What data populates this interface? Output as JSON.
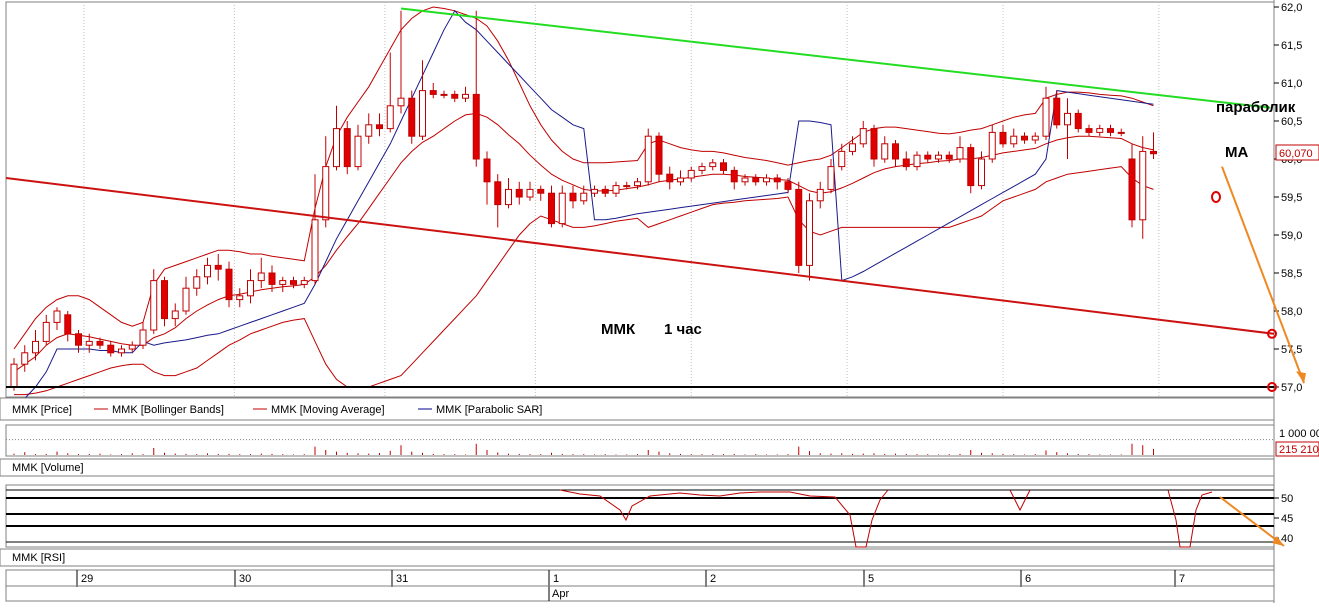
{
  "chart_data": {
    "type": "candlestick",
    "instrument": "MMK",
    "timeframe_label": "1 час",
    "title_main": "ММК",
    "price_axis": {
      "ylim": [
        57.0,
        62.0
      ],
      "ticks": [
        "62,0",
        "61,5",
        "61,0",
        "60,5",
        "60,0",
        "59,5",
        "59,0",
        "58,5",
        "58,0",
        "57,5",
        "57,0"
      ],
      "last_price_label": "60,070",
      "last_price": 60.07
    },
    "annotations": {
      "parabolic_label": "параболик",
      "ma_label": "МА"
    },
    "legend": [
      {
        "name": "MMK [Price]",
        "color": "#000000"
      },
      {
        "name": "MMK [Bollinger Bands]",
        "color": "#c00000"
      },
      {
        "name": "MMK [Moving Average]",
        "color": "#c00000"
      },
      {
        "name": "MMK [Parabolic SAR]",
        "color": "#00008b"
      }
    ],
    "volume_panel": {
      "label": "MMK [Volume]",
      "tick_top": "1 000 00",
      "last_value": "215 210"
    },
    "rsi_panel": {
      "label": "MMK [RSI]",
      "ticks": [
        "50",
        "45",
        "40"
      ]
    },
    "x_axis": {
      "day_labels": [
        "29",
        "30",
        "31",
        "1",
        "2",
        "5",
        "6",
        "7"
      ],
      "month_label": "Apr"
    },
    "candles": [
      [
        57.0,
        57.3,
        56.95,
        57.38
      ],
      [
        57.3,
        57.45,
        57.2,
        57.55
      ],
      [
        57.45,
        57.6,
        57.35,
        57.75
      ],
      [
        57.6,
        57.85,
        57.55,
        57.95
      ],
      [
        57.85,
        58.0,
        57.75,
        58.05
      ],
      [
        57.95,
        57.7,
        57.6,
        58.0
      ],
      [
        57.7,
        57.55,
        57.45,
        57.75
      ],
      [
        57.55,
        57.6,
        57.45,
        57.7
      ],
      [
        57.6,
        57.55,
        57.5,
        57.65
      ],
      [
        57.55,
        57.45,
        57.4,
        57.6
      ],
      [
        57.45,
        57.5,
        57.4,
        57.55
      ],
      [
        57.5,
        57.55,
        57.45,
        57.6
      ],
      [
        57.55,
        57.75,
        57.5,
        57.85
      ],
      [
        57.75,
        58.4,
        57.7,
        58.55
      ],
      [
        58.4,
        57.9,
        57.8,
        58.45
      ],
      [
        57.9,
        58.0,
        57.8,
        58.1
      ],
      [
        58.0,
        58.3,
        57.95,
        58.45
      ],
      [
        58.3,
        58.45,
        58.2,
        58.55
      ],
      [
        58.45,
        58.6,
        58.35,
        58.7
      ],
      [
        58.6,
        58.55,
        58.4,
        58.75
      ],
      [
        58.55,
        58.15,
        58.05,
        58.65
      ],
      [
        58.15,
        58.2,
        58.05,
        58.3
      ],
      [
        58.2,
        58.4,
        58.1,
        58.55
      ],
      [
        58.4,
        58.5,
        58.3,
        58.7
      ],
      [
        58.5,
        58.35,
        58.25,
        58.6
      ],
      [
        58.35,
        58.4,
        58.25,
        58.45
      ],
      [
        58.4,
        58.35,
        58.3,
        58.45
      ],
      [
        58.35,
        58.4,
        58.3,
        58.45
      ],
      [
        58.4,
        59.2,
        58.35,
        59.8
      ],
      [
        59.2,
        59.9,
        59.1,
        60.3
      ],
      [
        59.9,
        60.4,
        59.85,
        60.7
      ],
      [
        60.4,
        59.9,
        59.8,
        60.5
      ],
      [
        59.9,
        60.3,
        59.85,
        60.45
      ],
      [
        60.3,
        60.45,
        60.2,
        60.6
      ],
      [
        60.45,
        60.4,
        60.3,
        60.6
      ],
      [
        60.4,
        60.7,
        60.35,
        61.4
      ],
      [
        60.7,
        60.8,
        60.6,
        61.95
      ],
      [
        60.8,
        60.3,
        60.2,
        60.9
      ],
      [
        60.3,
        60.9,
        60.25,
        61.3
      ],
      [
        60.9,
        60.85,
        60.8,
        61.0
      ],
      [
        60.85,
        60.85,
        60.8,
        60.9
      ],
      [
        60.85,
        60.8,
        60.75,
        60.9
      ],
      [
        60.8,
        60.85,
        60.75,
        60.95
      ],
      [
        60.85,
        60.0,
        59.9,
        61.95
      ],
      [
        60.0,
        59.7,
        59.4,
        60.1
      ],
      [
        59.7,
        59.4,
        59.1,
        59.8
      ],
      [
        59.4,
        59.6,
        59.35,
        59.75
      ],
      [
        59.6,
        59.5,
        59.4,
        59.7
      ],
      [
        59.5,
        59.6,
        59.45,
        59.7
      ],
      [
        59.6,
        59.55,
        59.45,
        59.65
      ],
      [
        59.55,
        59.15,
        59.1,
        59.65
      ],
      [
        59.15,
        59.55,
        59.1,
        59.65
      ],
      [
        59.55,
        59.45,
        59.35,
        59.65
      ],
      [
        59.45,
        59.55,
        59.4,
        59.65
      ],
      [
        59.55,
        59.6,
        59.5,
        59.65
      ],
      [
        59.6,
        59.55,
        59.5,
        59.65
      ],
      [
        59.55,
        59.65,
        59.5,
        59.7
      ],
      [
        59.65,
        59.65,
        59.6,
        59.7
      ],
      [
        59.65,
        59.7,
        59.6,
        59.75
      ],
      [
        59.7,
        60.3,
        59.65,
        60.4
      ],
      [
        60.3,
        59.8,
        59.7,
        60.35
      ],
      [
        59.8,
        59.7,
        59.6,
        59.9
      ],
      [
        59.7,
        59.75,
        59.65,
        59.85
      ],
      [
        59.75,
        59.85,
        59.7,
        59.9
      ],
      [
        59.85,
        59.9,
        59.8,
        59.95
      ],
      [
        59.9,
        59.95,
        59.85,
        60.0
      ],
      [
        59.95,
        59.85,
        59.8,
        60.0
      ],
      [
        59.85,
        59.7,
        59.6,
        59.9
      ],
      [
        59.7,
        59.75,
        59.65,
        59.8
      ],
      [
        59.75,
        59.7,
        59.65,
        59.8
      ],
      [
        59.7,
        59.75,
        59.65,
        59.8
      ],
      [
        59.75,
        59.7,
        59.6,
        59.8
      ],
      [
        59.7,
        59.6,
        59.55,
        59.75
      ],
      [
        59.6,
        58.6,
        58.5,
        59.7
      ],
      [
        58.6,
        59.45,
        58.4,
        59.55
      ],
      [
        59.45,
        59.6,
        59.35,
        59.7
      ],
      [
        59.6,
        59.9,
        59.55,
        60.0
      ],
      [
        59.9,
        60.1,
        59.85,
        60.2
      ],
      [
        60.1,
        60.2,
        60.05,
        60.3
      ],
      [
        60.2,
        60.4,
        60.15,
        60.5
      ],
      [
        60.4,
        60.0,
        59.9,
        60.45
      ],
      [
        60.0,
        60.2,
        59.95,
        60.3
      ],
      [
        60.2,
        60.0,
        59.9,
        60.25
      ],
      [
        60.0,
        59.9,
        59.85,
        60.1
      ],
      [
        59.9,
        60.05,
        59.85,
        60.1
      ],
      [
        60.05,
        60.0,
        59.95,
        60.1
      ],
      [
        60.0,
        60.05,
        59.95,
        60.1
      ],
      [
        60.05,
        60.0,
        59.95,
        60.1
      ],
      [
        60.0,
        60.15,
        59.95,
        60.3
      ],
      [
        60.15,
        59.65,
        59.55,
        60.2
      ],
      [
        59.65,
        60.0,
        59.6,
        60.1
      ],
      [
        60.0,
        60.35,
        59.95,
        60.45
      ],
      [
        60.35,
        60.2,
        60.15,
        60.45
      ],
      [
        60.2,
        60.3,
        60.15,
        60.4
      ],
      [
        60.3,
        60.25,
        60.2,
        60.35
      ],
      [
        60.25,
        60.3,
        60.2,
        60.35
      ],
      [
        60.3,
        60.8,
        60.25,
        60.95
      ],
      [
        60.8,
        60.45,
        60.4,
        60.9
      ],
      [
        60.45,
        60.6,
        60.0,
        60.8
      ],
      [
        60.6,
        60.4,
        60.35,
        60.65
      ],
      [
        60.4,
        60.35,
        60.3,
        60.45
      ],
      [
        60.35,
        60.4,
        60.3,
        60.45
      ],
      [
        60.4,
        60.35,
        60.3,
        60.45
      ],
      [
        60.35,
        60.35,
        60.3,
        60.4
      ],
      [
        60.0,
        59.2,
        59.1,
        60.2
      ],
      [
        59.2,
        60.1,
        58.95,
        60.3
      ],
      [
        60.1,
        60.07,
        60.0,
        60.35
      ]
    ],
    "moving_average": [
      57.2,
      57.3,
      57.4,
      57.55,
      57.65,
      57.7,
      57.68,
      57.66,
      57.63,
      57.6,
      57.57,
      57.55,
      57.55,
      57.65,
      57.7,
      57.78,
      57.9,
      58.0,
      58.08,
      58.15,
      58.2,
      58.22,
      58.25,
      58.28,
      58.3,
      58.32,
      58.33,
      58.35,
      58.45,
      58.6,
      58.8,
      58.98,
      59.15,
      59.35,
      59.55,
      59.75,
      59.95,
      60.1,
      60.22,
      60.3,
      60.4,
      60.5,
      60.58,
      60.6,
      60.55,
      60.45,
      60.32,
      60.2,
      60.05,
      59.92,
      59.8,
      59.72,
      59.66,
      59.6,
      59.58,
      59.58,
      59.59,
      59.61,
      59.63,
      59.66,
      59.7,
      59.72,
      59.74,
      59.76,
      59.78,
      59.8,
      59.8,
      59.79,
      59.77,
      59.76,
      59.75,
      59.73,
      59.72,
      59.65,
      59.58,
      59.55,
      59.57,
      59.62,
      59.68,
      59.75,
      59.82,
      59.87,
      59.9,
      59.92,
      59.94,
      59.95,
      59.97,
      59.98,
      60.0,
      60.0,
      60.02,
      60.05,
      60.08,
      60.1,
      60.12,
      60.14,
      60.2,
      60.25,
      60.28,
      60.3,
      60.3,
      60.29,
      60.28,
      60.27,
      60.2,
      60.15,
      60.12
    ],
    "bollinger_upper": [
      57.5,
      57.7,
      57.9,
      58.05,
      58.15,
      58.2,
      58.2,
      58.15,
      58.05,
      57.95,
      57.85,
      57.8,
      57.85,
      58.35,
      58.55,
      58.6,
      58.65,
      58.7,
      58.75,
      58.8,
      58.8,
      58.78,
      58.75,
      58.75,
      58.72,
      58.7,
      58.68,
      58.66,
      59.35,
      59.9,
      60.3,
      60.55,
      60.75,
      60.95,
      61.2,
      61.45,
      61.7,
      61.85,
      61.95,
      62.0,
      61.98,
      61.95,
      61.9,
      61.85,
      61.75,
      61.55,
      61.3,
      61.0,
      60.7,
      60.45,
      60.25,
      60.1,
      60.0,
      59.95,
      59.95,
      59.95,
      59.96,
      59.97,
      59.98,
      60.2,
      60.25,
      60.2,
      60.15,
      60.12,
      60.1,
      60.1,
      60.08,
      60.05,
      60.02,
      60.0,
      59.98,
      59.95,
      59.92,
      59.95,
      59.98,
      60.0,
      60.05,
      60.15,
      60.25,
      60.35,
      60.4,
      60.42,
      60.42,
      60.4,
      60.38,
      60.36,
      60.34,
      60.33,
      60.35,
      60.38,
      60.4,
      60.45,
      60.5,
      60.55,
      60.58,
      60.6,
      60.8,
      60.85,
      60.88,
      60.88,
      60.87,
      60.85,
      60.84,
      60.83,
      60.8,
      60.75,
      60.7
    ],
    "bollinger_lower": [
      56.9,
      56.9,
      56.92,
      56.95,
      57.0,
      57.05,
      57.1,
      57.15,
      57.2,
      57.25,
      57.28,
      57.3,
      57.3,
      57.2,
      57.15,
      57.15,
      57.2,
      57.25,
      57.35,
      57.45,
      57.55,
      57.62,
      57.7,
      57.75,
      57.8,
      57.85,
      57.88,
      57.9,
      57.6,
      57.3,
      57.1,
      57.0,
      57.0,
      57.0,
      57.05,
      57.1,
      57.15,
      57.3,
      57.45,
      57.6,
      57.75,
      57.9,
      58.05,
      58.2,
      58.4,
      58.6,
      58.8,
      59.0,
      59.15,
      59.25,
      59.2,
      59.15,
      59.1,
      59.1,
      59.12,
      59.15,
      59.18,
      59.2,
      59.22,
      59.1,
      59.15,
      59.2,
      59.25,
      59.3,
      59.35,
      59.4,
      59.42,
      59.43,
      59.45,
      59.46,
      59.47,
      59.48,
      59.5,
      59.2,
      59.05,
      59.0,
      59.05,
      59.1,
      59.1,
      59.1,
      59.1,
      59.1,
      59.1,
      59.1,
      59.1,
      59.1,
      59.1,
      59.1,
      59.15,
      59.2,
      59.25,
      59.35,
      59.45,
      59.5,
      59.55,
      59.6,
      59.7,
      59.75,
      59.8,
      59.82,
      59.84,
      59.86,
      59.88,
      59.9,
      59.75,
      59.65,
      59.6
    ],
    "parabolic_sar": [
      56.7,
      56.85,
      57.0,
      57.2,
      57.5,
      57.5,
      57.5,
      57.5,
      57.48,
      57.48,
      57.45,
      57.45,
      57.6,
      57.55,
      57.58,
      57.6,
      57.62,
      57.65,
      57.68,
      57.7,
      57.75,
      57.8,
      57.85,
      57.9,
      57.95,
      58.0,
      58.05,
      58.1,
      58.35,
      58.65,
      58.95,
      59.2,
      59.45,
      59.7,
      59.95,
      60.2,
      60.5,
      60.8,
      61.1,
      61.4,
      61.7,
      61.95,
      61.8,
      61.7,
      61.55,
      61.4,
      61.25,
      61.1,
      60.95,
      60.8,
      60.65,
      60.55,
      60.45,
      60.4,
      59.2,
      59.2,
      59.22,
      59.25,
      59.28,
      59.3,
      59.32,
      59.34,
      59.36,
      59.38,
      59.4,
      59.42,
      59.44,
      59.46,
      59.48,
      59.5,
      59.52,
      59.54,
      59.56,
      60.5,
      60.5,
      60.48,
      60.45,
      58.4,
      58.45,
      58.52,
      58.6,
      58.68,
      58.76,
      58.84,
      58.92,
      59.0,
      59.08,
      59.16,
      59.24,
      59.32,
      59.4,
      59.48,
      59.56,
      59.64,
      59.72,
      59.8,
      60.0,
      60.9,
      60.88,
      60.86,
      60.84,
      60.82,
      60.8,
      60.78,
      60.76,
      60.74,
      60.72
    ],
    "resistance_line": {
      "from_index": 36,
      "from_price": 61.98,
      "to_index": 115,
      "to_price": 60.7
    },
    "support_line": {
      "from_index": -1,
      "from_price": 59.75,
      "to_index": 116,
      "to_price": 57.7
    },
    "horizontal_level": 57.0,
    "arrow_target": 57.05,
    "volume": [
      0.05,
      0.1,
      0.03,
      0.04,
      0.12,
      0.06,
      0.03,
      0.04,
      0.05,
      0.02,
      0.03,
      0.06,
      0.03,
      0.25,
      0.08,
      0.05,
      0.04,
      0.03,
      0.06,
      0.04,
      0.04,
      0.03,
      0.03,
      0.05,
      0.04,
      0.03,
      0.02,
      0.03,
      0.3,
      0.18,
      0.12,
      0.08,
      0.06,
      0.05,
      0.07,
      0.15,
      0.35,
      0.12,
      0.08,
      0.04,
      0.03,
      0.03,
      0.02,
      0.4,
      0.18,
      0.09,
      0.05,
      0.04,
      0.03,
      0.03,
      0.08,
      0.04,
      0.03,
      0.03,
      0.02,
      0.03,
      0.02,
      0.02,
      0.03,
      0.18,
      0.12,
      0.06,
      0.04,
      0.03,
      0.03,
      0.03,
      0.03,
      0.04,
      0.02,
      0.03,
      0.02,
      0.02,
      0.03,
      0.3,
      0.14,
      0.06,
      0.05,
      0.06,
      0.04,
      0.05,
      0.06,
      0.04,
      0.05,
      0.04,
      0.03,
      0.03,
      0.02,
      0.03,
      0.04,
      0.18,
      0.08,
      0.06,
      0.04,
      0.03,
      0.02,
      0.03,
      0.16,
      0.1,
      0.06,
      0.04,
      0.03,
      0.02,
      0.02,
      0.02,
      0.4,
      0.35,
      0.22
    ],
    "rsi": [
      null,
      null,
      null,
      null,
      null,
      null,
      null,
      null,
      null,
      null,
      null,
      null,
      null,
      null,
      null,
      null,
      null,
      null,
      null,
      null,
      null,
      null,
      null,
      null,
      null,
      null,
      null,
      null,
      null,
      null,
      null,
      null,
      null,
      null,
      null,
      null,
      null,
      null,
      null,
      null,
      null,
      null,
      null,
      null,
      null,
      null,
      null,
      null,
      null,
      null,
      null,
      null,
      null,
      null,
      null,
      null,
      null,
      null,
      null,
      null,
      null,
      null,
      null,
      null,
      null,
      null,
      null,
      null,
      null,
      null,
      null,
      null,
      null,
      null,
      null,
      null,
      null,
      null,
      null,
      null,
      null,
      null,
      null,
      null,
      null,
      null,
      null,
      null,
      null,
      null,
      null,
      null,
      null,
      null,
      null,
      null,
      null,
      null,
      null,
      null,
      null,
      null,
      null,
      null,
      null,
      null,
      null
    ]
  }
}
